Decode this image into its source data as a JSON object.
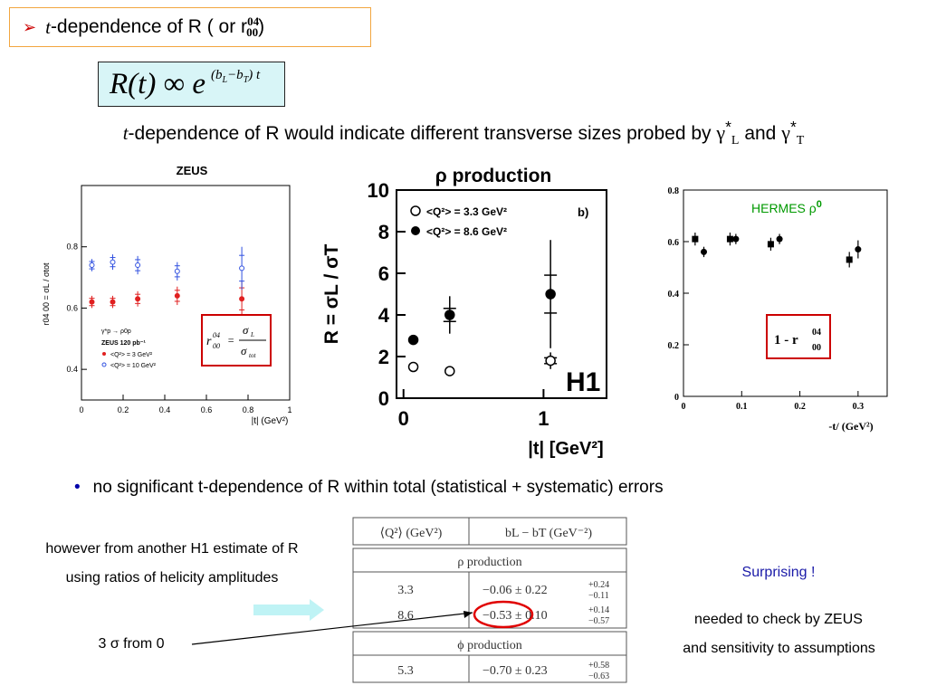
{
  "title": {
    "arrow": "➢",
    "t": "t",
    "text": "-dependence of R ( or r",
    "sup": "04",
    "sub": "00",
    "close": " )"
  },
  "formula": {
    "lhs": "R(t)",
    "prop": "∞",
    "base": "e",
    "exp_open": "(b",
    "exp_L": "L",
    "exp_minus": "−b",
    "exp_T": "T",
    "exp_close": ") t"
  },
  "statement": {
    "t": "t",
    "text": "-dependence of R  would indicate different transverse sizes probed by ",
    "gamma1": "γ",
    "star1": "*",
    "sub1": "L",
    "and": " and  ",
    "gamma2": "γ",
    "star2": "*",
    "sub2": "T"
  },
  "zeus": {
    "title": "ZEUS",
    "ylabel": "r04 00 = σL / σtot",
    "xlabel": "|t| (GeV²)",
    "legend": [
      "γ*p → ρ0p",
      "ZEUS 120 pb⁻¹",
      "<Q²> = 3 GeV²",
      "<Q²> = 10 GeV²"
    ],
    "formula_box": {
      "lhs": "r",
      "sup": "04",
      "sub": "00",
      "eq": "=",
      "num": "σ",
      "num_sub": "L",
      "den": "σ",
      "den_sub": "tot"
    },
    "colors": {
      "red": "#e02020",
      "blue": "#3050e0",
      "box": "#cc0000"
    },
    "chart_data": {
      "type": "scatter",
      "xlim": [
        0,
        1
      ],
      "ylim": [
        0.3,
        1.0
      ],
      "xticks": [
        "0",
        "0.2",
        "0.4",
        "0.6",
        "0.8",
        "1"
      ],
      "yticks": [
        "0.4",
        "0.6",
        "0.8"
      ],
      "series": [
        {
          "name": "<Q²> = 3 GeV²",
          "x": [
            0.05,
            0.15,
            0.27,
            0.46,
            0.77
          ],
          "y": [
            0.62,
            0.62,
            0.63,
            0.64,
            0.63
          ]
        },
        {
          "name": "<Q²> = 10 GeV²",
          "x": [
            0.05,
            0.15,
            0.27,
            0.46,
            0.77
          ],
          "y": [
            0.74,
            0.75,
            0.74,
            0.72,
            0.73
          ]
        }
      ]
    }
  },
  "h1": {
    "title": "ρ production",
    "panel": "b)",
    "logo": "H1",
    "ylabel": "R = σL / σT",
    "xlabel": "|t| [GeV²]",
    "legend": [
      "<Q²> = 3.3 GeV²",
      "<Q²> = 8.6 GeV²"
    ],
    "chart_data": {
      "type": "scatter",
      "xlim": [
        -0.05,
        1.45
      ],
      "ylim": [
        0,
        10
      ],
      "xticks": [
        "0",
        "1"
      ],
      "yticks": [
        "0",
        "2",
        "4",
        "6",
        "8",
        "10"
      ],
      "series": [
        {
          "name": "<Q²> = 3.3 GeV²",
          "x": [
            0.07,
            0.33,
            1.05
          ],
          "y": [
            1.5,
            1.3,
            1.8
          ]
        },
        {
          "name": "<Q²> = 8.6 GeV²",
          "x": [
            0.07,
            0.33,
            1.05
          ],
          "y": [
            2.8,
            4.0,
            5.0
          ]
        }
      ]
    }
  },
  "hermes": {
    "label": "HERMES  ρ",
    "label_sup": "0",
    "xlabel": "-t/  (GeV²)",
    "box": {
      "text": "1 - r",
      "sup": "04",
      "sub": "00"
    },
    "colors": {
      "label": "#009900",
      "box": "#cc0000"
    },
    "chart_data": {
      "type": "scatter",
      "xlim": [
        0,
        0.35
      ],
      "ylim": [
        0,
        0.8
      ],
      "xticks": [
        "0",
        "0.1",
        "0.2",
        "0.3"
      ],
      "yticks": [
        "0",
        "0.2",
        "0.4",
        "0.6",
        "0.8"
      ],
      "series": [
        {
          "name": "squares",
          "x": [
            0.02,
            0.08,
            0.15,
            0.285
          ],
          "y": [
            0.61,
            0.61,
            0.59,
            0.53
          ]
        },
        {
          "name": "circles",
          "x": [
            0.035,
            0.09,
            0.165,
            0.3
          ],
          "y": [
            0.56,
            0.61,
            0.61,
            0.57
          ]
        }
      ]
    }
  },
  "bullet": {
    "dot": "•",
    "text": "no significant t-dependence of R within total (statistical + systematic) errors"
  },
  "left_note": {
    "line1": "however from another H1 estimate of R",
    "line2": "using ratios of helicity amplitudes"
  },
  "sigma_note": "3 σ  from 0",
  "table": {
    "headers": [
      "⟨Q²⟩ (GeV²)",
      "bL − bT (GeV⁻²)"
    ],
    "sections": [
      {
        "title": "ρ production",
        "rows": [
          {
            "q2": "3.3",
            "val": "−0.06 ± 0.22",
            "up": "+0.24",
            "down": "−0.11"
          },
          {
            "q2": "8.6",
            "val": "−0.53 ± 0.10",
            "up": "+0.14",
            "down": "−0.57"
          }
        ]
      },
      {
        "title": "ϕ production",
        "rows": [
          {
            "q2": "5.3",
            "val": "−0.70 ± 0.23",
            "up": "+0.58",
            "down": "−0.63"
          }
        ]
      }
    ]
  },
  "right_note": {
    "surprising": "Surprising !",
    "line1": "needed to check by ZEUS",
    "line2": "and sensitivity to assumptions"
  }
}
